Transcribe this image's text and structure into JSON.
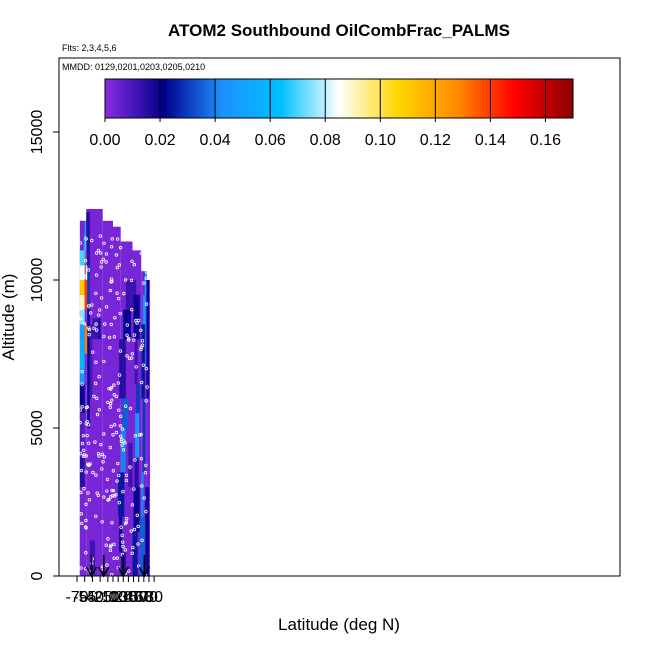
{
  "chart_data": {
    "type": "heatmap",
    "title": "ATOM2 Southbound OilCombFrac_PALMS",
    "flights_label": "Flts: 2,3,4,5,6",
    "dates_label": "MMDD: 0129,0201,0203,0205,0210",
    "xlabel": "Latitude (deg N)",
    "ylabel": "Altitude (m)",
    "xlim": [
      -70,
      85
    ],
    "ylim": [
      0,
      17500
    ],
    "x_ticks": [
      -70,
      -55,
      -40,
      -25,
      -10,
      0,
      10,
      20,
      30,
      40,
      50,
      60,
      70,
      80
    ],
    "x_tick_labels": [
      "-70",
      "-55",
      "-40",
      "-25",
      "-10",
      "0",
      "10",
      "20",
      "30",
      "40",
      "50",
      "60",
      "70",
      "80"
    ],
    "y_ticks": [
      0,
      5000,
      10000,
      15000
    ],
    "y_tick_labels": [
      "0",
      "5000",
      "10000",
      "15000"
    ],
    "colorbar": {
      "range": [
        0,
        0.17
      ],
      "ticks": [
        0.0,
        0.02,
        0.04,
        0.06,
        0.08,
        0.1,
        0.12,
        0.14,
        0.16
      ],
      "tick_labels": [
        "0.00",
        "0.02",
        "0.04",
        "0.06",
        "0.08",
        "0.10",
        "0.12",
        "0.14",
        "0.16"
      ],
      "colors": [
        "#8a2be2",
        "#00008b",
        "#1e90ff",
        "#00bfff",
        "#ffffff",
        "#ffd700",
        "#ff8c00",
        "#ff0000",
        "#8b0000"
      ]
    },
    "arrows_lat": [
      -42,
      -18,
      20,
      61
    ],
    "regions": [
      {
        "lat": [
          -65,
          -55
        ],
        "alt": [
          0,
          3000
        ],
        "value": 0.003
      },
      {
        "lat": [
          -65,
          -55
        ],
        "alt": [
          3000,
          4000
        ],
        "value": 0.015
      },
      {
        "lat": [
          -65,
          -55
        ],
        "alt": [
          4000,
          5500
        ],
        "value": 0.008
      },
      {
        "lat": [
          -65,
          -55
        ],
        "alt": [
          5500,
          6500
        ],
        "value": 0.02
      },
      {
        "lat": [
          -65,
          -55
        ],
        "alt": [
          6500,
          7000
        ],
        "value": 0.045
      },
      {
        "lat": [
          -65,
          -55
        ],
        "alt": [
          7000,
          7500
        ],
        "value": 0.06
      },
      {
        "lat": [
          -65,
          -55
        ],
        "alt": [
          7500,
          8000
        ],
        "value": 0.055
      },
      {
        "lat": [
          -65,
          -55
        ],
        "alt": [
          8000,
          8500
        ],
        "value": 0.05
      },
      {
        "lat": [
          -65,
          -55
        ],
        "alt": [
          8500,
          9000
        ],
        "value": 0.075
      },
      {
        "lat": [
          -65,
          -55
        ],
        "alt": [
          9000,
          9500
        ],
        "value": 0.09
      },
      {
        "lat": [
          -65,
          -55
        ],
        "alt": [
          9500,
          10000
        ],
        "value": 0.11
      },
      {
        "lat": [
          -65,
          -55
        ],
        "alt": [
          10000,
          10500
        ],
        "value": 0.085
      },
      {
        "lat": [
          -65,
          -55
        ],
        "alt": [
          10500,
          11000
        ],
        "value": 0.07
      },
      {
        "lat": [
          -57,
          -53
        ],
        "alt": [
          11000,
          11500
        ],
        "value": 0.06
      },
      {
        "lat": [
          -55,
          -52
        ],
        "alt": [
          11500,
          12000
        ],
        "value": 0.05
      },
      {
        "lat": [
          -55,
          -50
        ],
        "alt": [
          7500,
          8500
        ],
        "value": 0.13
      },
      {
        "lat": [
          -55,
          -50
        ],
        "alt": [
          9000,
          10000
        ],
        "value": 0.14
      },
      {
        "lat": [
          -53,
          -50
        ],
        "alt": [
          10000,
          11500
        ],
        "value": 0.09
      },
      {
        "lat": [
          -50,
          -45
        ],
        "alt": [
          5000,
          9000
        ],
        "value": 0.02
      },
      {
        "lat": [
          -50,
          -45
        ],
        "alt": [
          9000,
          10500
        ],
        "value": 0.03
      },
      {
        "lat": [
          -52,
          -45
        ],
        "alt": [
          10500,
          12300
        ],
        "value": 0.015
      },
      {
        "lat": [
          -45,
          -40
        ],
        "alt": [
          6000,
          8500
        ],
        "value": 0.01
      },
      {
        "lat": [
          -40,
          -28
        ],
        "alt": [
          8000,
          8700
        ],
        "value": 0.012
      },
      {
        "lat": [
          -28,
          -24
        ],
        "alt": [
          8000,
          8700
        ],
        "value": 0.018
      },
      {
        "lat": [
          -45,
          -35
        ],
        "alt": [
          0,
          1200
        ],
        "value": 0.012
      },
      {
        "lat": [
          15,
          25
        ],
        "alt": [
          0,
          800
        ],
        "value": 0.015
      },
      {
        "lat": [
          12,
          18
        ],
        "alt": [
          800,
          2000
        ],
        "value": 0.02
      },
      {
        "lat": [
          10,
          22
        ],
        "alt": [
          2000,
          3500
        ],
        "value": 0.025
      },
      {
        "lat": [
          15,
          25
        ],
        "alt": [
          3500,
          5000
        ],
        "value": 0.04
      },
      {
        "lat": [
          18,
          30
        ],
        "alt": [
          5000,
          6000
        ],
        "value": 0.035
      },
      {
        "lat": [
          12,
          25
        ],
        "alt": [
          6000,
          8000
        ],
        "value": 0.015
      },
      {
        "lat": [
          20,
          35
        ],
        "alt": [
          8000,
          9000
        ],
        "value": 0.02
      },
      {
        "lat": [
          25,
          45
        ],
        "alt": [
          9000,
          10000
        ],
        "value": 0.012
      },
      {
        "lat": [
          30,
          38
        ],
        "alt": [
          3000,
          4500
        ],
        "value": 0.012
      },
      {
        "lat": [
          38,
          48
        ],
        "alt": [
          0,
          1500
        ],
        "value": 0.025
      },
      {
        "lat": [
          40,
          52
        ],
        "alt": [
          1500,
          3000
        ],
        "value": 0.02
      },
      {
        "lat": [
          42,
          50
        ],
        "alt": [
          3000,
          4000
        ],
        "value": 0.015
      },
      {
        "lat": [
          43,
          51
        ],
        "alt": [
          4000,
          5500
        ],
        "value": 0.045
      },
      {
        "lat": [
          45,
          52
        ],
        "alt": [
          5500,
          6500
        ],
        "value": 0.03
      },
      {
        "lat": [
          42,
          48
        ],
        "alt": [
          6500,
          8000
        ],
        "value": 0.012
      },
      {
        "lat": [
          40,
          52
        ],
        "alt": [
          8000,
          9500
        ],
        "value": 0.02
      },
      {
        "lat": [
          52,
          62
        ],
        "alt": [
          0,
          2000
        ],
        "value": 0.035
      },
      {
        "lat": [
          55,
          60
        ],
        "alt": [
          2000,
          3500
        ],
        "value": 0.04
      },
      {
        "lat": [
          58,
          63
        ],
        "alt": [
          3500,
          6000
        ],
        "value": 0.03
      },
      {
        "lat": [
          55,
          62
        ],
        "alt": [
          6000,
          8500
        ],
        "value": 0.025
      },
      {
        "lat": [
          58,
          64
        ],
        "alt": [
          8500,
          9500
        ],
        "value": 0.045
      },
      {
        "lat": [
          62,
          66
        ],
        "alt": [
          9500,
          10300
        ],
        "value": 0.055
      },
      {
        "lat": [
          63,
          67
        ],
        "alt": [
          7000,
          9500
        ],
        "value": 0.04
      },
      {
        "lat": [
          65,
          70
        ],
        "alt": [
          6000,
          10000
        ],
        "value": 0.02
      },
      {
        "lat": [
          63,
          70
        ],
        "alt": [
          0,
          3000
        ],
        "value": 0.02
      }
    ]
  }
}
